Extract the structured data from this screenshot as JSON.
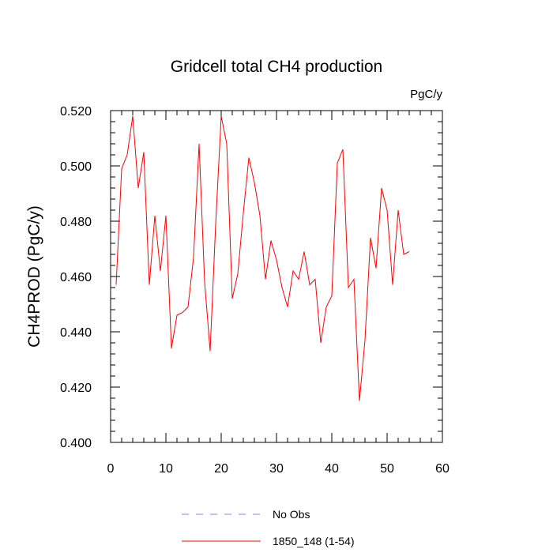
{
  "chart_data": {
    "type": "line",
    "title": "Gridcell total CH4 production",
    "units": "PgC/y",
    "xlabel": "",
    "ylabel": "CH4PROD  (PgC/y)",
    "xlim": [
      0,
      60
    ],
    "ylim": [
      0.4,
      0.52
    ],
    "xticks": [
      0,
      10,
      20,
      30,
      40,
      50,
      60
    ],
    "xtick_labels": [
      "0",
      "10",
      "20",
      "30",
      "40",
      "50",
      "60"
    ],
    "yticks": [
      0.4,
      0.42,
      0.44,
      0.46,
      0.48,
      0.5,
      0.52
    ],
    "ytick_labels": [
      "0.400",
      "0.420",
      "0.440",
      "0.460",
      "0.480",
      "0.500",
      "0.520"
    ],
    "grid": false,
    "legend_position": "bottom-center",
    "series": [
      {
        "name": "No Obs",
        "color": "#8080ff",
        "style": "dashed",
        "x": [],
        "values": []
      },
      {
        "name": "1850_148 (1-54)",
        "color": "#ff0000",
        "style": "solid",
        "x": [
          1,
          2,
          3,
          4,
          5,
          6,
          7,
          8,
          9,
          10,
          11,
          12,
          13,
          14,
          15,
          16,
          17,
          18,
          19,
          20,
          21,
          22,
          23,
          24,
          25,
          26,
          27,
          28,
          29,
          30,
          31,
          32,
          33,
          34,
          35,
          36,
          37,
          38,
          39,
          40,
          41,
          42,
          43,
          44,
          45,
          46,
          47,
          48,
          49,
          50,
          51,
          52,
          53,
          54
        ],
        "values": [
          0.457,
          0.499,
          0.504,
          0.518,
          0.492,
          0.505,
          0.457,
          0.482,
          0.462,
          0.482,
          0.434,
          0.446,
          0.447,
          0.449,
          0.467,
          0.508,
          0.458,
          0.433,
          0.479,
          0.518,
          0.508,
          0.452,
          0.461,
          0.483,
          0.503,
          0.494,
          0.482,
          0.459,
          0.473,
          0.466,
          0.456,
          0.449,
          0.462,
          0.459,
          0.469,
          0.457,
          0.459,
          0.436,
          0.449,
          0.453,
          0.501,
          0.506,
          0.456,
          0.459,
          0.415,
          0.437,
          0.474,
          0.463,
          0.492,
          0.484,
          0.457,
          0.484,
          0.468,
          0.469
        ]
      }
    ]
  }
}
